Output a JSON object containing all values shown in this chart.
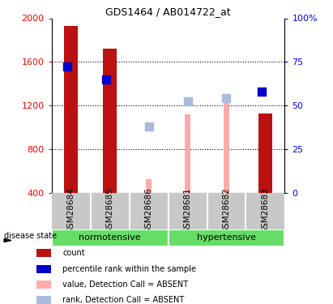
{
  "title": "GDS1464 / AB014722_at",
  "samples": [
    "GSM28684",
    "GSM28685",
    "GSM28686",
    "GSM28681",
    "GSM28682",
    "GSM28683"
  ],
  "counts": [
    1930,
    1720,
    null,
    null,
    null,
    1130
  ],
  "percentile_ranks": [
    72.5,
    65,
    null,
    null,
    null,
    58
  ],
  "absent_values": [
    null,
    null,
    530,
    1120,
    1230,
    null
  ],
  "absent_ranks": [
    null,
    null,
    1010,
    1240,
    1270,
    null
  ],
  "ylim_left": [
    400,
    2000
  ],
  "ylim_right": [
    0,
    100
  ],
  "yticks_left": [
    400,
    800,
    1200,
    1600,
    2000
  ],
  "yticks_right": [
    0,
    25,
    50,
    75,
    100
  ],
  "color_count": "#BB1111",
  "color_percentile": "#0000CC",
  "color_absent_value": "#FFAAAA",
  "color_absent_rank": "#AABBDD",
  "color_green": "#66DD66",
  "color_bg_samples": "#C8C8C8",
  "bar_width": 0.35,
  "absent_bar_width": 0.14,
  "dot_size": 55,
  "normotensive_label": "normotensive",
  "hypertensive_label": "hypertensive",
  "disease_state_label": "disease state",
  "legend": [
    {
      "color": "#BB1111",
      "label": "count"
    },
    {
      "color": "#0000CC",
      "label": "percentile rank within the sample"
    },
    {
      "color": "#FFAAAA",
      "label": "value, Detection Call = ABSENT"
    },
    {
      "color": "#AABBDD",
      "label": "rank, Detection Call = ABSENT"
    }
  ]
}
